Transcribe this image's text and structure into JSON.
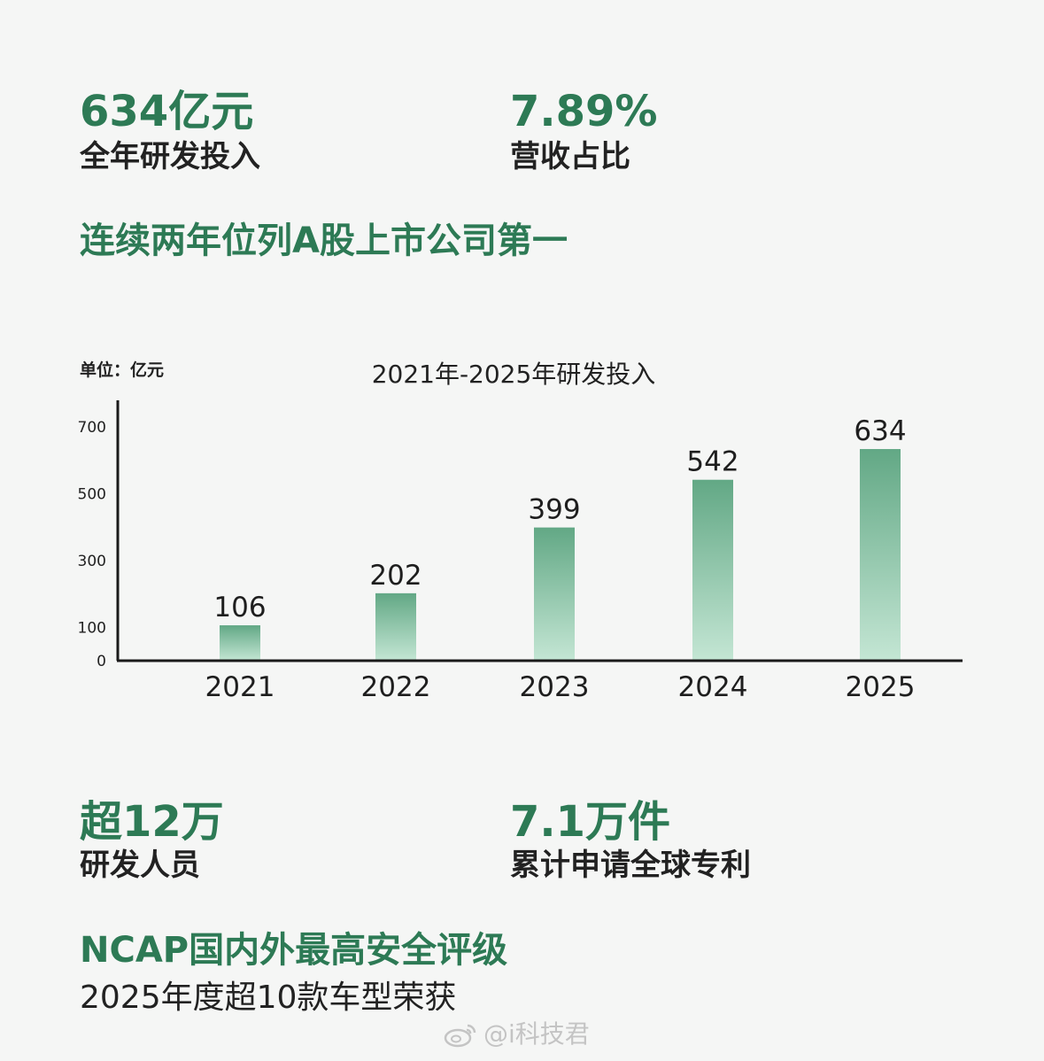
{
  "top_stats": {
    "rd_investment": {
      "value": "634亿元",
      "label": "全年研发投入"
    },
    "revenue_ratio": {
      "value": "7.89%",
      "label": "营收占比"
    }
  },
  "headline_rank": "连续两年位列A股上市公司第一",
  "chart_data": {
    "type": "bar",
    "title": "2021年-2025年研发投入",
    "unit_label": "单位：亿元",
    "categories": [
      "2021",
      "2022",
      "2023",
      "2024",
      "2025"
    ],
    "values": [
      106,
      202,
      399,
      542,
      634
    ],
    "data_labels": [
      "106",
      "202",
      "399",
      "542",
      "634"
    ],
    "y_ticks": [
      0,
      100,
      300,
      500,
      700
    ],
    "ylim": [
      0,
      780
    ],
    "xlabel": "",
    "ylabel": "",
    "bar_color_top": "#62a885",
    "bar_color_bottom": "#c4e6d4",
    "axis_color": "#1a1a1a"
  },
  "bottom_stats": {
    "rd_staff": {
      "value": "超12万",
      "label": "研发人员"
    },
    "patents": {
      "value": "7.1万件",
      "label": "累计申请全球专利"
    }
  },
  "ncap": {
    "title": "NCAP国内外最高安全评级",
    "subtitle": "2025年度超10款车型荣获"
  },
  "watermark": {
    "text": "@i科技君",
    "icon": "weibo-icon"
  },
  "colors": {
    "accent": "#2d7a55",
    "background": "#f5f6f5"
  }
}
